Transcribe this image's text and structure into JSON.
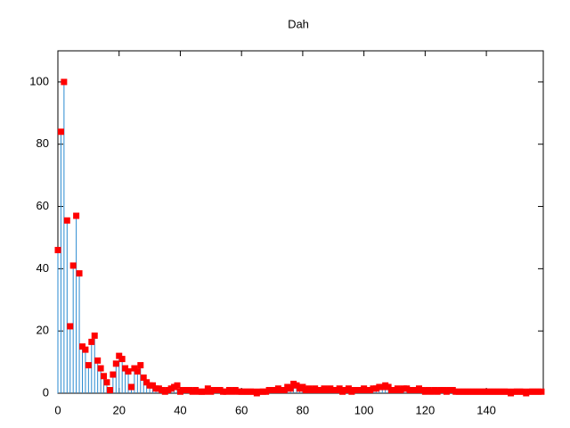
{
  "chart_data": {
    "type": "impulses",
    "title": "Dah",
    "x": [
      0,
      1,
      2,
      3,
      4,
      5,
      6,
      7,
      8,
      9,
      10,
      11,
      12,
      13,
      14,
      15,
      16,
      17,
      18,
      19,
      20,
      21,
      22,
      23,
      24,
      25,
      26,
      27,
      28,
      29,
      30,
      31,
      32,
      33,
      34,
      35,
      36,
      37,
      38,
      39,
      40,
      41,
      42,
      43,
      44,
      45,
      46,
      47,
      48,
      49,
      50,
      51,
      52,
      53,
      54,
      55,
      56,
      57,
      58,
      59,
      60,
      61,
      62,
      63,
      64,
      65,
      66,
      67,
      68,
      69,
      70,
      71,
      72,
      73,
      74,
      75,
      76,
      77,
      78,
      79,
      80,
      81,
      82,
      83,
      84,
      85,
      86,
      87,
      88,
      89,
      90,
      91,
      92,
      93,
      94,
      95,
      96,
      97,
      98,
      99,
      100,
      101,
      102,
      103,
      104,
      105,
      106,
      107,
      108,
      109,
      110,
      111,
      112,
      113,
      114,
      115,
      116,
      117,
      118,
      119,
      120,
      121,
      122,
      123,
      124,
      125,
      126,
      127,
      128,
      129,
      130,
      131,
      132,
      133,
      134,
      135,
      136,
      137,
      138,
      139,
      140,
      141,
      142,
      143,
      144,
      145,
      146,
      147,
      148,
      149,
      150,
      151,
      152,
      153,
      154,
      155,
      156,
      157,
      158
    ],
    "values": [
      46,
      84,
      100,
      55.5,
      21.5,
      41,
      57,
      38.5,
      15,
      14,
      9,
      16.5,
      18.5,
      10.5,
      8,
      5.5,
      3.5,
      1,
      6,
      9.5,
      12,
      11,
      8,
      7,
      2,
      8,
      7,
      9,
      5,
      3.5,
      2.5,
      2.5,
      1.5,
      1.5,
      1,
      0.5,
      1,
      1.5,
      2,
      2.5,
      0.5,
      1,
      1,
      1,
      0.5,
      1,
      0.5,
      0.5,
      0.5,
      1.5,
      0.5,
      1,
      1,
      1,
      0.5,
      0.5,
      1,
      0.5,
      1,
      0.5,
      0.5,
      0.5,
      0.5,
      0.5,
      0.5,
      0,
      0.5,
      0.5,
      0.5,
      1,
      1,
      1,
      1.5,
      1,
      1,
      2,
      1.5,
      3,
      2.5,
      1.5,
      2,
      1,
      1.5,
      1,
      1.5,
      1,
      1,
      1.5,
      1,
      1.5,
      1,
      1,
      1.5,
      0.5,
      1,
      1.5,
      0.5,
      1,
      1,
      1,
      1.5,
      1,
      1,
      1.5,
      1.5,
      2,
      2,
      2.5,
      2,
      1,
      1,
      1.5,
      1,
      1.5,
      1.5,
      1,
      1,
      1,
      1.5,
      1,
      0.5,
      1,
      0.5,
      1,
      0.5,
      1,
      1,
      0.5,
      1,
      1,
      0.5,
      0.5,
      0.5,
      0.5,
      0.5,
      0.5,
      0.5,
      0.5,
      0.5,
      0.5,
      0.5,
      0.5,
      0.5,
      0.5,
      0.5,
      0.5,
      0.5,
      0.5,
      0,
      0.5,
      0.5,
      0.5,
      0.5,
      0,
      0.5,
      0.5,
      0.5,
      0.5,
      0.5
    ],
    "color": "#ff0000",
    "impulse_color": "#2a8ad0",
    "xlim": [
      0,
      158.6
    ],
    "xticks": [
      0,
      20,
      40,
      60,
      80,
      100,
      120,
      140
    ],
    "ylim": [
      0,
      110
    ],
    "yticks": [
      0,
      20,
      40,
      60,
      80,
      100
    ]
  }
}
